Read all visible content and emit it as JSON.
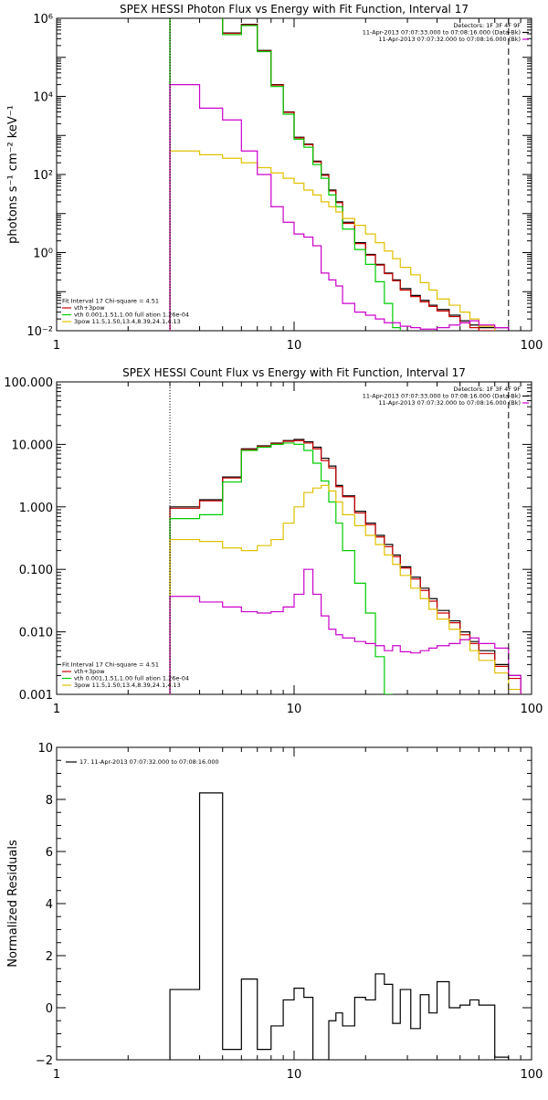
{
  "chart_data": [
    {
      "type": "line",
      "title": "SPEX HESSI Photon Flux vs Energy with Fit Function, Interval 17",
      "xlabel": "",
      "ylabel": "photons s⁻¹ cm⁻² keV⁻¹",
      "xscale": "log",
      "yscale": "log",
      "xlim": [
        1,
        100
      ],
      "ylim": [
        0.01,
        1000000
      ],
      "xticks": [
        {
          "v": 1,
          "label": "1"
        },
        {
          "v": 10,
          "label": "10"
        },
        {
          "v": 100,
          "label": "100"
        }
      ],
      "yticks": [
        {
          "v": 1000000,
          "label": "10⁶"
        },
        {
          "v": 10000,
          "label": "10⁴"
        },
        {
          "v": 100,
          "label": "10²"
        },
        {
          "v": 1,
          "label": "10⁰"
        },
        {
          "v": 0.01,
          "label": "10⁻²"
        }
      ],
      "vlines": [
        {
          "x": 3,
          "style": "dotted"
        },
        {
          "x": 80,
          "style": "dashed"
        }
      ],
      "legend_top_right": [
        {
          "text": "Detectors: 1F 3F 4F 9F",
          "color": "#000000",
          "line": false
        },
        {
          "text": "11-Apr-2013 07:07:33.000 to 07:08:16.000 (Data-Bk)",
          "color": "#000000",
          "line": true
        },
        {
          "text": "11-Apr-2013 07:07:32.000 to 07:08:16.000 (Bk)",
          "color": "#cc00cc",
          "line": true
        }
      ],
      "legend_bottom_left": [
        {
          "text": "Fit Interval 17   Chi-square = 4.51",
          "color": "#000000",
          "line": false
        },
        {
          "text": "vth+3pow",
          "color": "#cc0000",
          "line": true
        },
        {
          "text": "vth 0.001,1.51,1.00  full ation 1.26e-04",
          "color": "#00cc00",
          "line": true
        },
        {
          "text": "3pow 11.5,1.50,13.4,8.39,24.1,4.13",
          "color": "#e0c000",
          "line": true
        }
      ],
      "edges": [
        3,
        4,
        5,
        6,
        7,
        8,
        9,
        10,
        11,
        12,
        13,
        14,
        15,
        16,
        18,
        20,
        22,
        24,
        26,
        28,
        31,
        34,
        37,
        40,
        45,
        50,
        55,
        60,
        70,
        80,
        90
      ],
      "series": [
        {
          "name": "data",
          "color": "#000000",
          "values": [
            2200000,
            1650000,
            420000,
            700000,
            150000,
            20000,
            4000,
            900,
            600,
            220,
            100,
            40,
            20,
            6,
            1.8,
            0.9,
            0.5,
            0.3,
            0.2,
            0.12,
            0.08,
            0.06,
            0.045,
            0.035,
            0.025,
            0.018,
            0.014,
            0.012,
            0.012,
            0.009
          ]
        },
        {
          "name": "vth+3pow",
          "color": "#cc0000",
          "values": [
            2100000,
            1600000,
            410000,
            680000,
            145000,
            19500,
            3900,
            870,
            580,
            210,
            95,
            38,
            19,
            5.6,
            1.7,
            0.86,
            0.48,
            0.29,
            0.19,
            0.11,
            0.075,
            0.055,
            0.042,
            0.032,
            0.023,
            0.016,
            0.012,
            0.01,
            0.008,
            0.006
          ]
        },
        {
          "name": "vth",
          "color": "#00cc00",
          "values": [
            2000000,
            1500000,
            380000,
            650000,
            140000,
            18000,
            3500,
            800,
            500,
            180,
            80,
            30,
            15,
            4,
            1.2,
            0.5,
            0.18,
            0.05,
            0.012,
            0.003
          ]
        },
        {
          "name": "3pow",
          "color": "#e0c000",
          "values": [
            400,
            320,
            260,
            200,
            150,
            110,
            80,
            60,
            40,
            30,
            20,
            15,
            11,
            7.5,
            5,
            3,
            1.8,
            1.1,
            0.7,
            0.42,
            0.27,
            0.17,
            0.11,
            0.065,
            0.045,
            0.03,
            0.02,
            0.013,
            0.008,
            0.005
          ]
        },
        {
          "name": "Bk",
          "color": "#cc00cc",
          "values": [
            20000,
            5000,
            2500,
            400,
            100,
            15,
            6,
            3,
            2.5,
            1.5,
            0.3,
            0.2,
            0.14,
            0.05,
            0.03,
            0.025,
            0.02,
            0.016,
            0.016,
            0.013,
            0.012,
            0.011,
            0.011,
            0.012,
            0.014,
            0.016,
            0.018,
            0.014,
            0.012,
            0.005
          ]
        }
      ]
    },
    {
      "type": "line",
      "title": "SPEX HESSI Count Flux vs Energy with Fit Function, Interval 17",
      "xlabel": "",
      "ylabel": "",
      "xscale": "log",
      "yscale": "log",
      "xlim": [
        1,
        100
      ],
      "ylim": [
        0.001,
        100
      ],
      "xticks": [
        {
          "v": 1,
          "label": "1"
        },
        {
          "v": 10,
          "label": "10"
        },
        {
          "v": 100,
          "label": "100"
        }
      ],
      "yticks": [
        {
          "v": 100,
          "label": "100.000"
        },
        {
          "v": 10,
          "label": "10.000"
        },
        {
          "v": 1,
          "label": "1.000"
        },
        {
          "v": 0.1,
          "label": "0.100"
        },
        {
          "v": 0.01,
          "label": "0.010"
        },
        {
          "v": 0.001,
          "label": "0.001"
        }
      ],
      "vlines": [
        {
          "x": 3,
          "style": "dotted"
        },
        {
          "x": 80,
          "style": "dashed"
        }
      ],
      "legend_top_right": [
        {
          "text": "Detectors: 1F 3F 4F 9F",
          "color": "#000000",
          "line": false
        },
        {
          "text": "11-Apr-2013 07:07:33.000 to 07:08:16.000 (Data-Bk)",
          "color": "#000000",
          "line": true
        },
        {
          "text": "11-Apr-2013 07:07:32.000 to 07:08:16.000 (Bk)",
          "color": "#cc00cc",
          "line": true
        }
      ],
      "legend_bottom_left": [
        {
          "text": "Fit Interval 17   Chi-square = 4.51",
          "color": "#000000",
          "line": false
        },
        {
          "text": "vth+3pow",
          "color": "#cc0000",
          "line": true
        },
        {
          "text": "vth 0.001,1.51,1.00  full ation 1.26e-04",
          "color": "#00cc00",
          "line": true
        },
        {
          "text": "3pow 11.5,1.50,13.4,8.39,24.1,4.13",
          "color": "#e0c000",
          "line": true
        }
      ],
      "edges": [
        3,
        4,
        5,
        6,
        7,
        8,
        9,
        10,
        11,
        12,
        13,
        14,
        15,
        16,
        18,
        20,
        22,
        24,
        26,
        28,
        31,
        34,
        37,
        40,
        45,
        50,
        55,
        60,
        70,
        80,
        90
      ],
      "series": [
        {
          "name": "data",
          "color": "#000000",
          "values": [
            1.0,
            1.3,
            3.0,
            8.5,
            9.5,
            10.5,
            11.5,
            12,
            11,
            9,
            6,
            4.5,
            2.2,
            1.5,
            0.85,
            0.55,
            0.35,
            0.25,
            0.17,
            0.11,
            0.075,
            0.05,
            0.034,
            0.022,
            0.015,
            0.01,
            0.007,
            0.005,
            0.003,
            0.002
          ]
        },
        {
          "name": "vth+3pow",
          "color": "#cc0000",
          "values": [
            0.95,
            1.25,
            2.9,
            8.3,
            9.3,
            10.3,
            11.2,
            11.5,
            10.5,
            8.5,
            5.5,
            4.2,
            2.1,
            1.45,
            0.8,
            0.52,
            0.33,
            0.23,
            0.16,
            0.105,
            0.07,
            0.046,
            0.031,
            0.02,
            0.014,
            0.009,
            0.0065,
            0.0045,
            0.0028,
            0.0018
          ]
        },
        {
          "name": "vth",
          "color": "#00cc00",
          "values": [
            0.65,
            0.75,
            2.5,
            8,
            9,
            10,
            10.5,
            10,
            8,
            5,
            2.6,
            1.2,
            0.55,
            0.2,
            0.06,
            0.02,
            0.004,
            0.001
          ]
        },
        {
          "name": "3pow",
          "color": "#e0c000",
          "values": [
            0.3,
            0.28,
            0.22,
            0.2,
            0.24,
            0.3,
            0.55,
            1.0,
            1.7,
            2.0,
            2.2,
            1.8,
            1.2,
            0.75,
            0.5,
            0.35,
            0.25,
            0.17,
            0.12,
            0.08,
            0.05,
            0.034,
            0.023,
            0.016,
            0.011,
            0.0075,
            0.005,
            0.0035,
            0.0022,
            0.0012
          ]
        },
        {
          "name": "Bk",
          "color": "#cc00cc",
          "values": [
            0.037,
            0.03,
            0.025,
            0.021,
            0.02,
            0.021,
            0.025,
            0.04,
            0.1,
            0.04,
            0.018,
            0.011,
            0.009,
            0.008,
            0.007,
            0.0065,
            0.006,
            0.005,
            0.006,
            0.0048,
            0.0046,
            0.005,
            0.0055,
            0.006,
            0.0065,
            0.0075,
            0.008,
            0.0065,
            0.0055,
            0.002
          ]
        }
      ]
    },
    {
      "type": "line",
      "title": "",
      "xlabel": "",
      "ylabel": "Normalized Residuals",
      "xscale": "log",
      "yscale": "linear",
      "xlim": [
        1,
        100
      ],
      "ylim": [
        -2,
        10
      ],
      "xticks": [
        {
          "v": 1,
          "label": "1"
        },
        {
          "v": 10,
          "label": "10"
        },
        {
          "v": 100,
          "label": "100"
        }
      ],
      "yticks": [
        {
          "v": 10,
          "label": "10"
        },
        {
          "v": 8,
          "label": "8"
        },
        {
          "v": 6,
          "label": "6"
        },
        {
          "v": 4,
          "label": "4"
        },
        {
          "v": 2,
          "label": "2"
        },
        {
          "v": 0,
          "label": "0"
        },
        {
          "v": -2,
          "label": "−2"
        }
      ],
      "vlines": [],
      "legend_top_left": [
        {
          "text": "17. 11-Apr-2013 07:07:32.000 to 07:08:16.000",
          "color": "#000000",
          "line": true
        }
      ],
      "edges": [
        3,
        4,
        5,
        6,
        7,
        8,
        9,
        10,
        11,
        12,
        13,
        14,
        15,
        16,
        18,
        20,
        22,
        24,
        26,
        28,
        31,
        34,
        37,
        40,
        45,
        50,
        55,
        60,
        70,
        80
      ],
      "series": [
        {
          "name": "",
          "color": "#000000",
          "values": [
            0.7,
            8.25,
            -1.6,
            1.1,
            -1.6,
            -0.7,
            0.3,
            0.75,
            0.4,
            -2.0,
            -2.0,
            -0.5,
            -0.2,
            -0.7,
            0.4,
            0.3,
            1.3,
            0.9,
            -0.6,
            0.7,
            -0.8,
            0.5,
            -0.2,
            1.0,
            0.0,
            0.1,
            0.3,
            0.1,
            -1.9
          ]
        }
      ]
    }
  ]
}
